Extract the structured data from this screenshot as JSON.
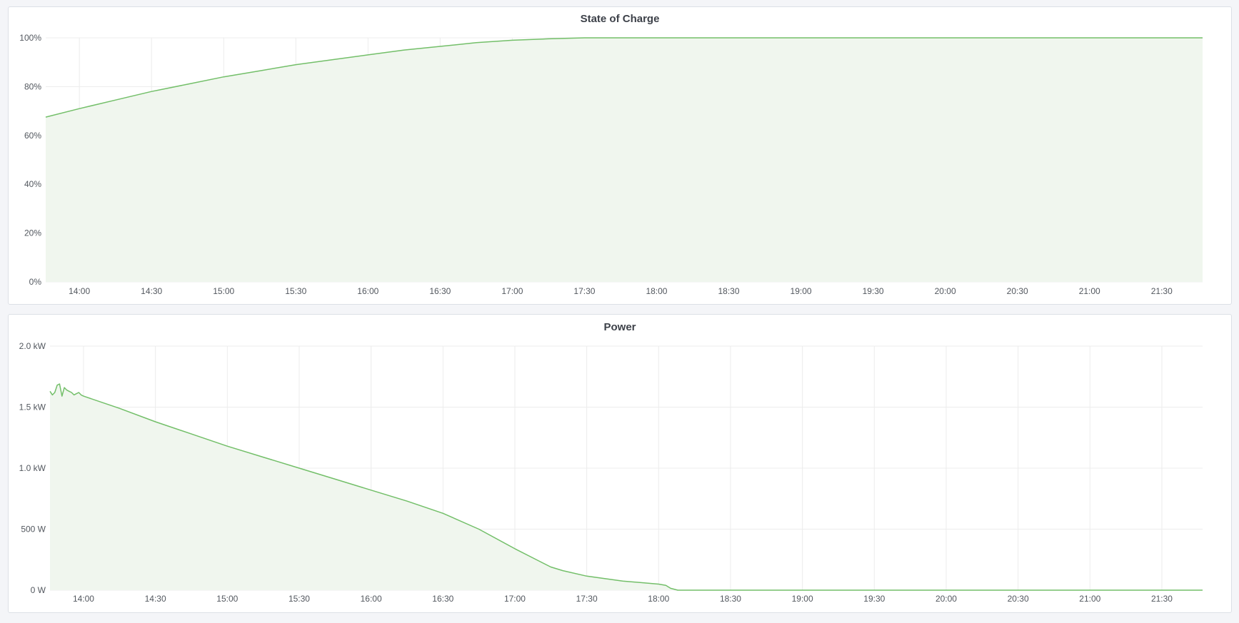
{
  "colors": {
    "line": "#73bf69",
    "fill": "#f0f6ee",
    "grid": "#ececec",
    "panel_bg": "#ffffff",
    "page_bg": "#f4f5f8"
  },
  "chart_data": [
    {
      "type": "area",
      "title": "State of Charge",
      "xlabel": "",
      "ylabel": "",
      "xlim": [
        "13:46",
        "21:47"
      ],
      "ylim": [
        0,
        100
      ],
      "grid": true,
      "x_ticks": [
        "14:00",
        "14:30",
        "15:00",
        "15:30",
        "16:00",
        "16:30",
        "17:00",
        "17:30",
        "18:00",
        "18:30",
        "19:00",
        "19:30",
        "20:00",
        "20:30",
        "21:00",
        "21:30"
      ],
      "y_ticks": [
        {
          "value": 0,
          "label": "0%"
        },
        {
          "value": 20,
          "label": "20%"
        },
        {
          "value": 40,
          "label": "40%"
        },
        {
          "value": 60,
          "label": "60%"
        },
        {
          "value": 80,
          "label": "80%"
        },
        {
          "value": 100,
          "label": "100%"
        }
      ],
      "series": [
        {
          "x": [
            "13:46",
            "14:00",
            "14:15",
            "14:30",
            "14:45",
            "15:00",
            "15:15",
            "15:30",
            "15:45",
            "16:00",
            "16:15",
            "16:30",
            "16:45",
            "17:00",
            "17:15",
            "17:30",
            "17:45",
            "18:00",
            "19:00",
            "20:00",
            "21:00",
            "21:47"
          ],
          "y": [
            67.5,
            71,
            74.5,
            78,
            81,
            84,
            86.5,
            89,
            91,
            93,
            95,
            96.5,
            98,
            99,
            99.6,
            100,
            100,
            100,
            100,
            100,
            100,
            100
          ]
        }
      ]
    },
    {
      "type": "area",
      "title": "Power",
      "xlabel": "",
      "ylabel": "",
      "xlim": [
        "13:46",
        "21:47"
      ],
      "ylim": [
        0,
        2000
      ],
      "grid": true,
      "x_ticks": [
        "14:00",
        "14:30",
        "15:00",
        "15:30",
        "16:00",
        "16:30",
        "17:00",
        "17:30",
        "18:00",
        "18:30",
        "19:00",
        "19:30",
        "20:00",
        "20:30",
        "21:00",
        "21:30"
      ],
      "y_ticks": [
        {
          "value": 0,
          "label": "0 W"
        },
        {
          "value": 500,
          "label": "500 W"
        },
        {
          "value": 1000,
          "label": "1.0 kW"
        },
        {
          "value": 1500,
          "label": "1.5 kW"
        },
        {
          "value": 2000,
          "label": "2.0 kW"
        }
      ],
      "series": [
        {
          "x": [
            "13:46",
            "13:47",
            "13:48",
            "13:49",
            "13:50",
            "13:51",
            "13:52",
            "13:53",
            "13:54",
            "13:55",
            "13:56",
            "13:57",
            "13:58",
            "13:59",
            "14:00",
            "14:15",
            "14:30",
            "14:45",
            "15:00",
            "15:15",
            "15:30",
            "15:45",
            "16:00",
            "16:15",
            "16:30",
            "16:45",
            "17:00",
            "17:10",
            "17:15",
            "17:20",
            "17:30",
            "17:45",
            "18:00",
            "18:03",
            "18:05",
            "18:08",
            "18:30",
            "19:00",
            "20:00",
            "21:00",
            "21:47"
          ],
          "y": [
            1630,
            1600,
            1620,
            1680,
            1690,
            1590,
            1660,
            1640,
            1630,
            1620,
            1600,
            1610,
            1620,
            1600,
            1590,
            1490,
            1380,
            1280,
            1180,
            1090,
            1000,
            910,
            820,
            730,
            630,
            500,
            340,
            240,
            190,
            160,
            115,
            75,
            50,
            40,
            15,
            0,
            0,
            0,
            0,
            0,
            0
          ]
        }
      ]
    }
  ]
}
